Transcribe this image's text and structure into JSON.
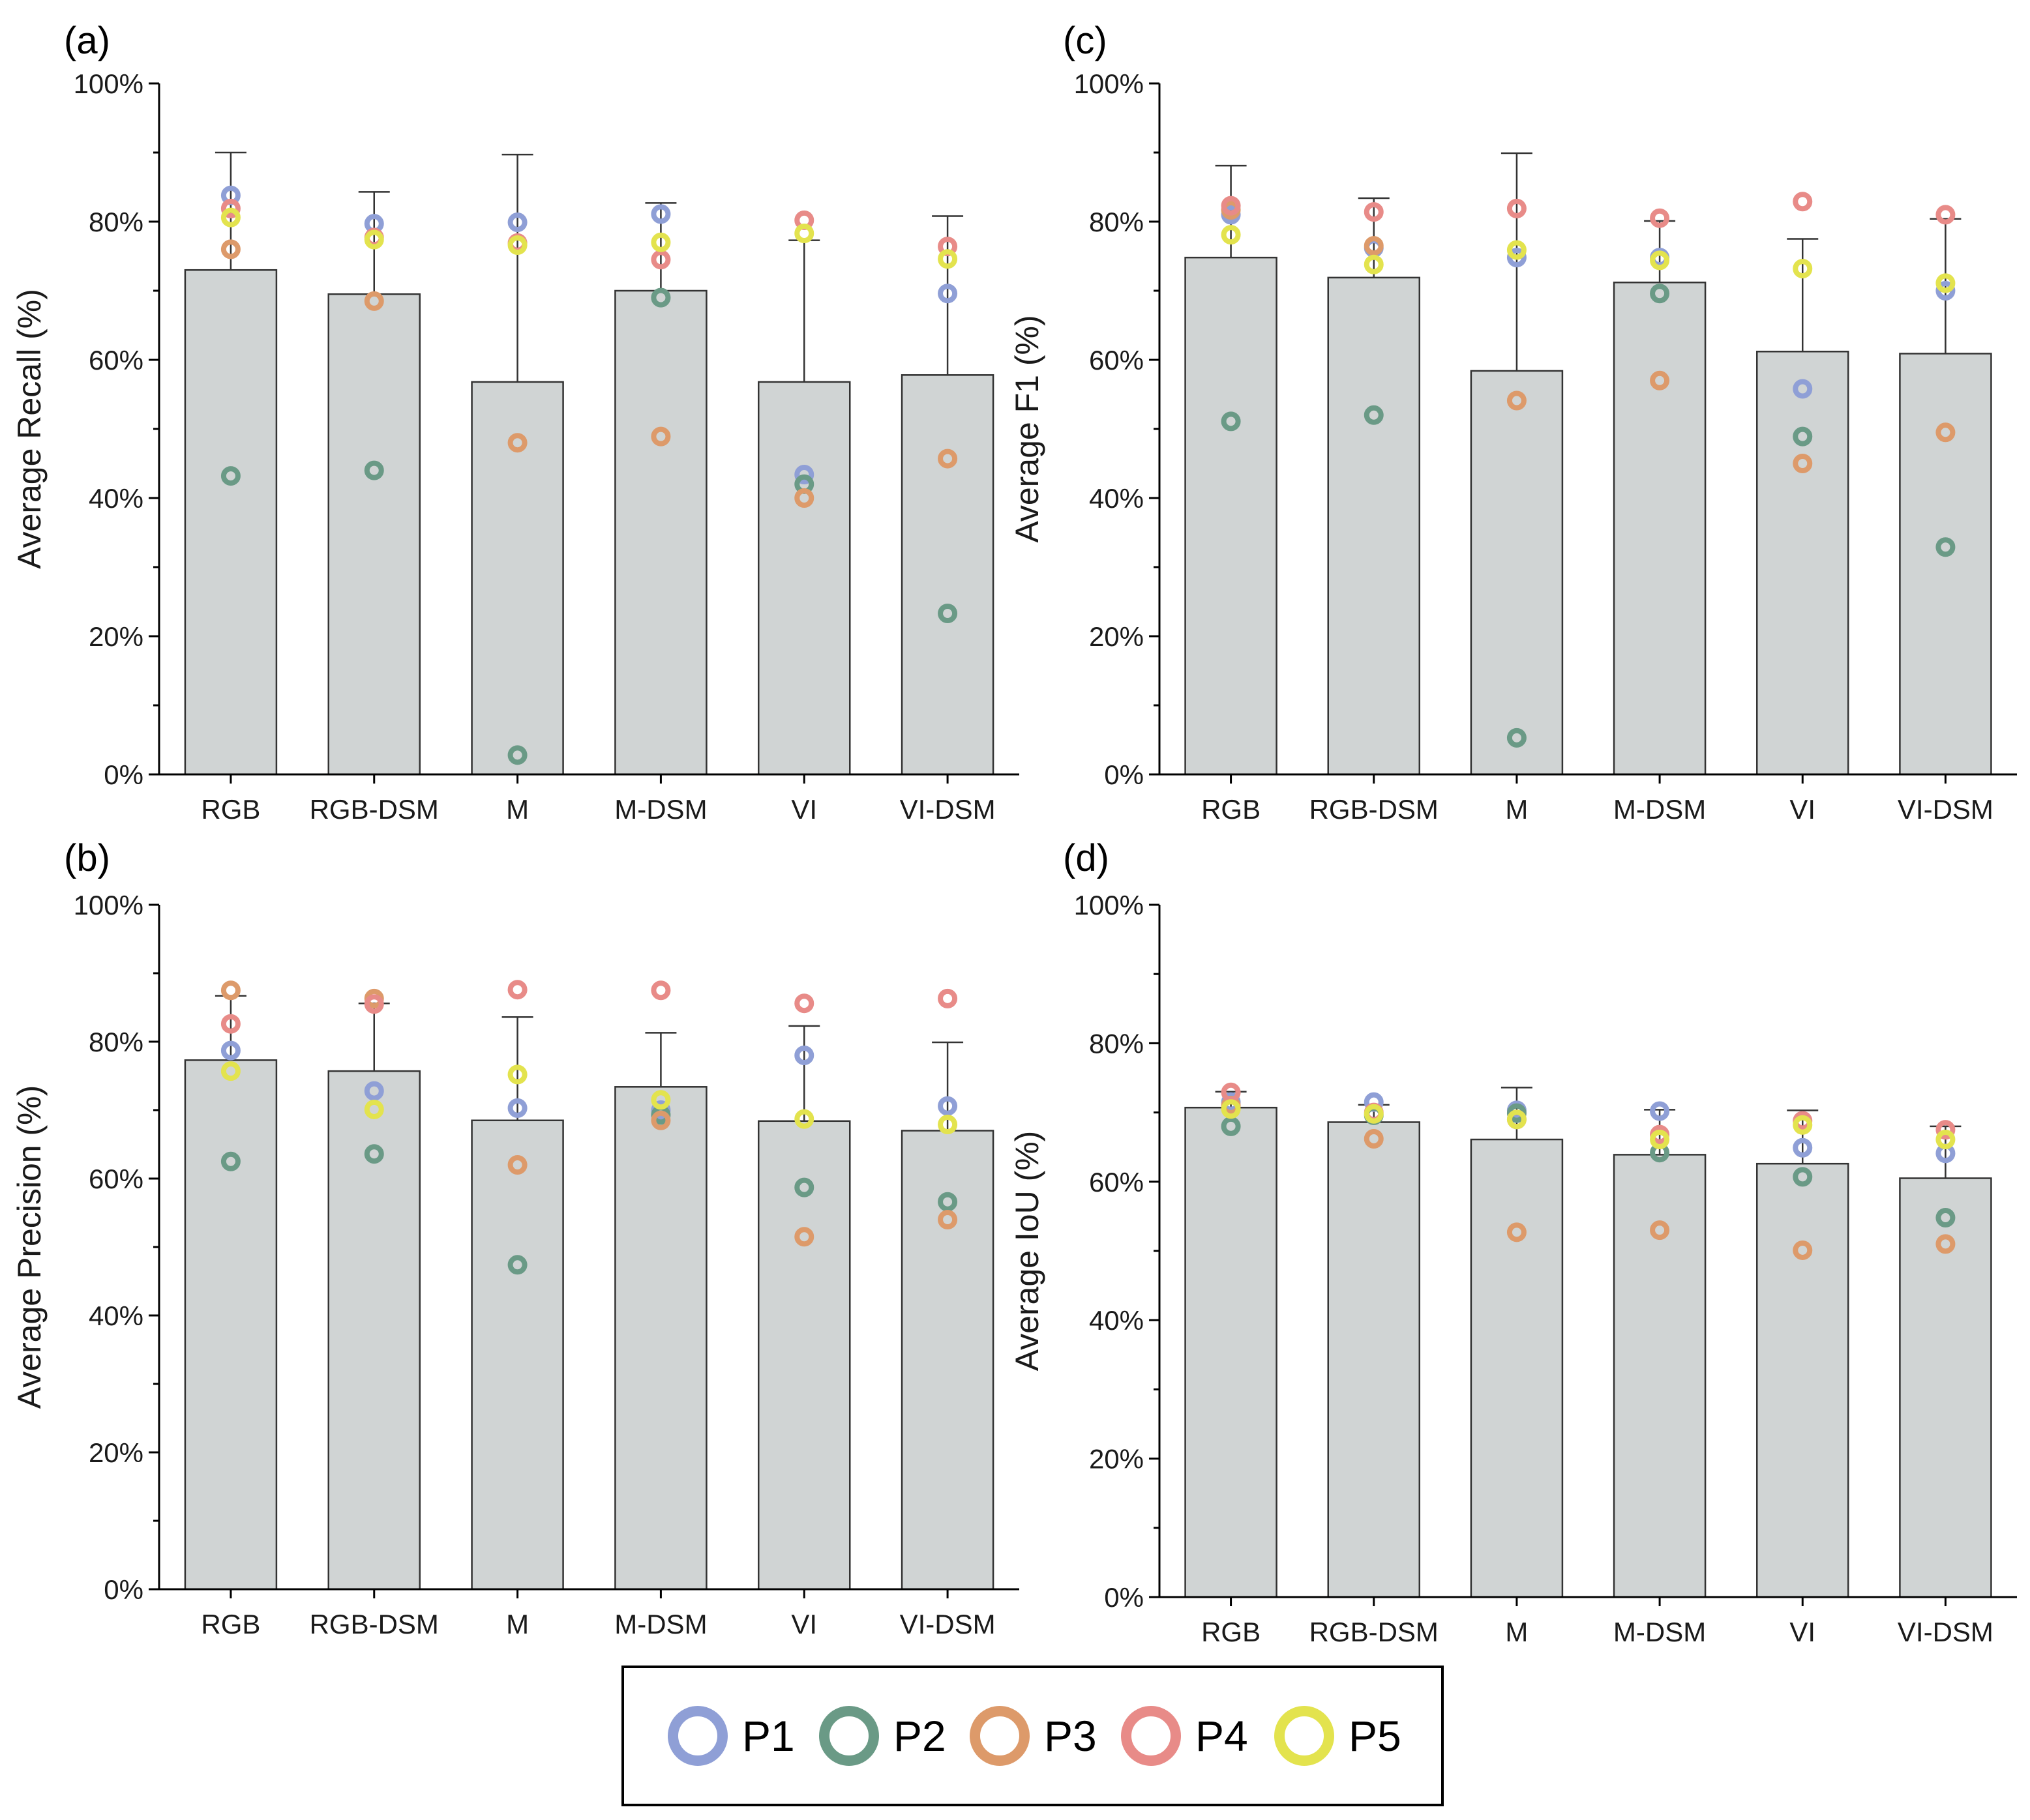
{
  "chart_data": [
    {
      "panel": "(a)",
      "type": "bar",
      "ylabel": "Average Recall (%)",
      "ylim": [
        0,
        100
      ],
      "yticks": [
        "0%",
        "20%",
        "40%",
        "60%",
        "80%",
        "100%"
      ],
      "categories": [
        "RGB",
        "RGB-DSM",
        "M",
        "M-DSM",
        "VI",
        "VI-DSM"
      ],
      "means": [
        73,
        69.5,
        56.8,
        70,
        56.8,
        57.8
      ],
      "error_upper": [
        90,
        84.3,
        89.7,
        82.7,
        77.3,
        80.8
      ],
      "points": {
        "P1": [
          83.8,
          79.7,
          79.9,
          81.1,
          43.4,
          69.6
        ],
        "P2": [
          43.2,
          44.0,
          2.8,
          69.0,
          42.0,
          23.3
        ],
        "P3": [
          76.0,
          68.5,
          48.0,
          48.9,
          40.0,
          45.7
        ],
        "P4": [
          81.9,
          77.7,
          76.9,
          74.5,
          80.2,
          76.4
        ],
        "P5": [
          80.6,
          77.4,
          76.6,
          77.0,
          78.3,
          74.6
        ]
      }
    },
    {
      "panel": "(b)",
      "type": "bar",
      "ylabel": "Average Precision (%)",
      "ylim": [
        0,
        100
      ],
      "yticks": [
        "0%",
        "20%",
        "40%",
        "60%",
        "80%",
        "100%"
      ],
      "categories": [
        "RGB",
        "RGB-DSM",
        "M",
        "M-DSM",
        "VI",
        "VI-DSM"
      ],
      "means": [
        77.3,
        75.7,
        68.5,
        73.4,
        68.4,
        67
      ],
      "error_upper": [
        86.7,
        85.6,
        83.6,
        81.3,
        82.3,
        79.9
      ],
      "points": {
        "P1": [
          78.7,
          72.8,
          70.3,
          70.0,
          78.0,
          70.6
        ],
        "P2": [
          62.5,
          63.6,
          47.4,
          69.3,
          58.7,
          56.6
        ],
        "P3": [
          87.5,
          86.3,
          62.0,
          68.5,
          51.5,
          54.0
        ],
        "P4": [
          82.6,
          85.5,
          87.6,
          87.5,
          85.6,
          86.3
        ],
        "P5": [
          75.7,
          70.1,
          75.2,
          71.5,
          68.7,
          67.9
        ]
      }
    },
    {
      "panel": "(c)",
      "type": "bar",
      "ylabel": "Average F1 (%)",
      "ylim": [
        0,
        100
      ],
      "yticks": [
        "0%",
        "20%",
        "40%",
        "60%",
        "80%",
        "100%"
      ],
      "categories": [
        "RGB",
        "RGB-DSM",
        "M",
        "M-DSM",
        "VI",
        "VI-DSM"
      ],
      "means": [
        74.8,
        71.9,
        58.4,
        71.2,
        61.2,
        60.9
      ],
      "error_upper": [
        88.1,
        83.4,
        89.9,
        80.1,
        77.5,
        80.4
      ],
      "points": {
        "P1": [
          81.0,
          76.2,
          74.8,
          74.8,
          55.8,
          70.0
        ],
        "P2": [
          51.1,
          52.0,
          5.3,
          69.6,
          48.9,
          32.9
        ],
        "P3": [
          81.7,
          76.5,
          54.1,
          57.0,
          45.0,
          49.5
        ],
        "P4": [
          82.3,
          81.4,
          81.9,
          80.5,
          82.9,
          81.0
        ],
        "P5": [
          78.1,
          73.8,
          75.9,
          74.4,
          73.2,
          71.1
        ]
      }
    },
    {
      "panel": "(d)",
      "type": "bar",
      "ylabel": "Average IoU (%)",
      "ylim": [
        0,
        100
      ],
      "yticks": [
        "0%",
        "20%",
        "40%",
        "60%",
        "80%",
        "100%"
      ],
      "categories": [
        "RGB",
        "RGB-DSM",
        "M",
        "M-DSM",
        "VI",
        "VI-DSM"
      ],
      "means": [
        70.7,
        68.6,
        66.1,
        63.9,
        62.6,
        60.5
      ],
      "error_upper": [
        73.0,
        71.1,
        73.6,
        70.4,
        70.3,
        68.0
      ],
      "points": {
        "P1": [
          71.5,
          71.5,
          70.3,
          70.2,
          64.9,
          64.1
        ],
        "P2": [
          68.0,
          69.6,
          69.9,
          64.2,
          60.7,
          54.8
        ],
        "P3": [
          71.0,
          66.2,
          52.7,
          53.0,
          50.1,
          51.0
        ],
        "P4": [
          72.9,
          70.0,
          69.0,
          66.8,
          68.8,
          67.5
        ],
        "P5": [
          70.5,
          69.8,
          69.0,
          66.1,
          68.2,
          66.1
        ]
      }
    }
  ],
  "legend": {
    "entries": [
      {
        "label": "P1",
        "color": "#8f9fd6"
      },
      {
        "label": "P2",
        "color": "#6a9a86"
      },
      {
        "label": "P3",
        "color": "#dd9a6a"
      },
      {
        "label": "P4",
        "color": "#e88b88"
      },
      {
        "label": "P5",
        "color": "#e3e34e"
      }
    ]
  },
  "colors": {
    "bar_fill": "#d0d4d4",
    "bar_stroke": "#333333",
    "axis": "#000000"
  }
}
